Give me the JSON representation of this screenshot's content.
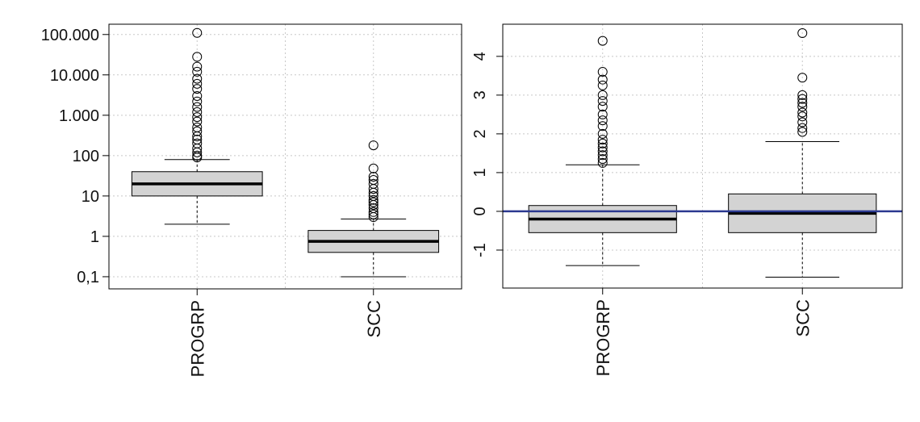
{
  "chart_data": [
    {
      "type": "box",
      "log_y": true,
      "grid": true,
      "box_color": "#d3d3d3",
      "categories": [
        "PROGRP",
        "SCC"
      ],
      "boxes": [
        {
          "whislo": 2,
          "q1": 10,
          "median": 20,
          "q3": 40,
          "whishi": 80,
          "fliers": [
            90,
            100,
            120,
            150,
            200,
            250,
            300,
            400,
            500,
            700,
            900,
            1200,
            1600,
            2200,
            3000,
            4500,
            6000,
            8000,
            12000,
            16000,
            28000,
            110000
          ]
        },
        {
          "whislo": 0.1,
          "q1": 0.4,
          "median": 0.75,
          "q3": 1.4,
          "whishi": 2.7,
          "fliers": [
            3,
            3.5,
            4,
            5,
            6,
            7,
            8,
            10,
            12,
            15,
            20,
            25,
            30,
            48,
            180
          ]
        }
      ],
      "ylim": [
        0.05,
        180000
      ],
      "yticks": [
        {
          "value": 0.1,
          "label": "0,1"
        },
        1,
        10,
        100,
        {
          "value": 1000,
          "label": "1.000"
        },
        {
          "value": 10000,
          "label": "10.000"
        },
        {
          "value": 100000,
          "label": "100.000"
        }
      ]
    },
    {
      "type": "box",
      "log_y": false,
      "grid": true,
      "box_color": "#d3d3d3",
      "ytick_labels_rotated": true,
      "categories": [
        "PROGRP",
        "SCC"
      ],
      "boxes": [
        {
          "whislo": -1.4,
          "q1": -0.55,
          "median": -0.2,
          "q3": 0.15,
          "whishi": 1.2,
          "fliers": [
            1.25,
            1.35,
            1.45,
            1.55,
            1.65,
            1.75,
            1.85,
            2.0,
            2.2,
            2.35,
            2.5,
            2.7,
            2.85,
            3.0,
            3.25,
            3.4,
            3.6,
            4.4
          ]
        },
        {
          "whislo": -1.7,
          "q1": -0.55,
          "median": -0.05,
          "q3": 0.45,
          "whishi": 1.8,
          "fliers": [
            2.05,
            2.15,
            2.3,
            2.45,
            2.55,
            2.7,
            2.8,
            2.9,
            3.0,
            3.45,
            4.6
          ]
        }
      ],
      "hline": 0,
      "hline_color": "#2b3990",
      "ylim": [
        -1.98,
        4.83
      ],
      "yticks": [
        -1,
        0,
        1,
        2,
        3,
        4
      ]
    }
  ]
}
